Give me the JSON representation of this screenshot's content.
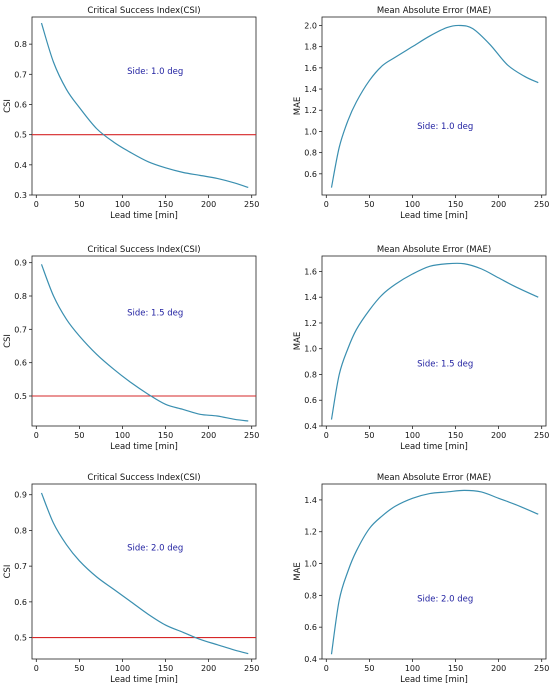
{
  "colors": {
    "series": "#3a8fb0",
    "reference_line": "#d62728",
    "annotation": "#1f1fa0",
    "axes": "#222222"
  },
  "chart_data": [
    {
      "type": "line",
      "title": "Critical Success Index(CSI)",
      "xlabel": "Lead time [min]",
      "ylabel": "CSI",
      "annotation": "Side: 1.0 deg",
      "xlim": [
        -5,
        255
      ],
      "ylim": [
        0.3,
        0.89
      ],
      "xticks": [
        0,
        50,
        100,
        150,
        200,
        250
      ],
      "yticks": [
        0.3,
        0.4,
        0.5,
        0.6,
        0.7,
        0.8
      ],
      "ytick_labels": [
        "0.3",
        "0.4",
        "0.5",
        "0.6",
        "0.7",
        "0.8"
      ],
      "hline": 0.5,
      "x": [
        6,
        20,
        35,
        50,
        70,
        90,
        110,
        130,
        150,
        170,
        190,
        210,
        230,
        246
      ],
      "y": [
        0.87,
        0.74,
        0.65,
        0.59,
        0.52,
        0.475,
        0.44,
        0.41,
        0.39,
        0.375,
        0.365,
        0.355,
        0.34,
        0.325
      ]
    },
    {
      "type": "line",
      "title": "Mean Absolute Error (MAE)",
      "xlabel": "Lead time [min]",
      "ylabel": "MAE",
      "annotation": "Side: 1.0 deg",
      "xlim": [
        -5,
        255
      ],
      "ylim": [
        0.4,
        2.08
      ],
      "xticks": [
        0,
        50,
        100,
        150,
        200,
        250
      ],
      "yticks": [
        0.6,
        0.8,
        1.0,
        1.2,
        1.4,
        1.6,
        1.8,
        2.0
      ],
      "ytick_labels": [
        "0.6",
        "0.8",
        "1.0",
        "1.2",
        "1.4",
        "1.6",
        "1.8",
        "2.0"
      ],
      "x": [
        6,
        15,
        25,
        35,
        50,
        65,
        80,
        100,
        120,
        140,
        155,
        170,
        190,
        210,
        230,
        246
      ],
      "y": [
        0.47,
        0.85,
        1.1,
        1.28,
        1.48,
        1.62,
        1.7,
        1.8,
        1.9,
        1.98,
        2.0,
        1.97,
        1.82,
        1.63,
        1.52,
        1.46
      ]
    },
    {
      "type": "line",
      "title": "Critical Success Index(CSI)",
      "xlabel": "Lead time [min]",
      "ylabel": "CSI",
      "annotation": "Side: 1.5 deg",
      "xlim": [
        -5,
        255
      ],
      "ylim": [
        0.41,
        0.92
      ],
      "xticks": [
        0,
        50,
        100,
        150,
        200,
        250
      ],
      "yticks": [
        0.5,
        0.6,
        0.7,
        0.8,
        0.9
      ],
      "ytick_labels": [
        "0.5",
        "0.6",
        "0.7",
        "0.8",
        "0.9"
      ],
      "hline": 0.5,
      "x": [
        6,
        20,
        35,
        50,
        70,
        90,
        110,
        130,
        150,
        170,
        190,
        210,
        230,
        246
      ],
      "y": [
        0.895,
        0.8,
        0.73,
        0.68,
        0.625,
        0.58,
        0.54,
        0.505,
        0.475,
        0.46,
        0.445,
        0.44,
        0.43,
        0.425
      ]
    },
    {
      "type": "line",
      "title": "Mean Absolute Error (MAE)",
      "xlabel": "Lead time [min]",
      "ylabel": "MAE",
      "annotation": "Side: 1.5 deg",
      "xlim": [
        -5,
        255
      ],
      "ylim": [
        0.4,
        1.72
      ],
      "xticks": [
        0,
        50,
        100,
        150,
        200,
        250
      ],
      "yticks": [
        0.4,
        0.6,
        0.8,
        1.0,
        1.2,
        1.4,
        1.6
      ],
      "ytick_labels": [
        "0.4",
        "0.6",
        "0.8",
        "1.0",
        "1.2",
        "1.4",
        "1.6"
      ],
      "x": [
        6,
        15,
        25,
        35,
        50,
        65,
        80,
        100,
        120,
        140,
        160,
        180,
        200,
        220,
        246
      ],
      "y": [
        0.45,
        0.8,
        1.0,
        1.15,
        1.3,
        1.42,
        1.5,
        1.58,
        1.64,
        1.66,
        1.66,
        1.62,
        1.55,
        1.48,
        1.4
      ]
    },
    {
      "type": "line",
      "title": "Critical Success Index(CSI)",
      "xlabel": "Lead time [min]",
      "ylabel": "CSI",
      "annotation": "Side: 2.0 deg",
      "xlim": [
        -5,
        255
      ],
      "ylim": [
        0.44,
        0.93
      ],
      "xticks": [
        0,
        50,
        100,
        150,
        200,
        250
      ],
      "yticks": [
        0.5,
        0.6,
        0.7,
        0.8,
        0.9
      ],
      "ytick_labels": [
        "0.5",
        "0.6",
        "0.7",
        "0.8",
        "0.9"
      ],
      "hline": 0.5,
      "x": [
        6,
        20,
        35,
        50,
        70,
        90,
        110,
        130,
        150,
        170,
        190,
        210,
        230,
        246
      ],
      "y": [
        0.905,
        0.82,
        0.76,
        0.715,
        0.67,
        0.635,
        0.6,
        0.565,
        0.535,
        0.515,
        0.495,
        0.48,
        0.465,
        0.455
      ]
    },
    {
      "type": "line",
      "title": "Mean Absolute Error (MAE)",
      "xlabel": "Lead time [min]",
      "ylabel": "MAE",
      "annotation": "Side: 2.0 deg",
      "xlim": [
        -5,
        255
      ],
      "ylim": [
        0.4,
        1.5
      ],
      "xticks": [
        0,
        50,
        100,
        150,
        200,
        250
      ],
      "yticks": [
        0.4,
        0.6,
        0.8,
        1.0,
        1.2,
        1.4
      ],
      "ytick_labels": [
        "0.4",
        "0.6",
        "0.8",
        "1.0",
        "1.2",
        "1.4"
      ],
      "x": [
        6,
        15,
        25,
        35,
        50,
        65,
        80,
        100,
        120,
        140,
        160,
        180,
        200,
        220,
        246
      ],
      "y": [
        0.43,
        0.77,
        0.95,
        1.08,
        1.22,
        1.3,
        1.36,
        1.41,
        1.44,
        1.45,
        1.46,
        1.45,
        1.41,
        1.37,
        1.31
      ]
    }
  ]
}
